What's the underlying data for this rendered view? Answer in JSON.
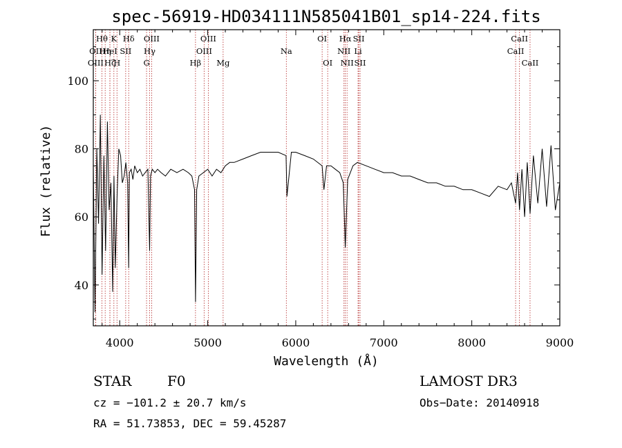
{
  "chart_data": {
    "type": "line",
    "title": "spec-56919-HD034111N585041B01_sp14-224.fits",
    "xlabel": "Wavelength (Å)",
    "ylabel": "Flux (relative)",
    "xlim": [
      3700,
      9000
    ],
    "ylim": [
      28,
      115
    ],
    "x_ticks": [
      4000,
      5000,
      6000,
      7000,
      8000,
      9000
    ],
    "y_ticks": [
      40,
      60,
      80,
      100
    ],
    "grid": false,
    "series": [
      {
        "x": [
          3700,
          3720,
          3740,
          3760,
          3780,
          3800,
          3820,
          3840,
          3860,
          3880,
          3900,
          3920,
          3935,
          3950,
          3970,
          3990,
          4010,
          4030,
          4050,
          4070,
          4090,
          4102,
          4110,
          4130,
          4150,
          4170,
          4200,
          4230,
          4260,
          4290,
          4320,
          4340,
          4350,
          4370,
          4400,
          4430,
          4470,
          4520,
          4580,
          4650,
          4720,
          4780,
          4820,
          4850,
          4861,
          4875,
          4900,
          4950,
          5000,
          5050,
          5100,
          5150,
          5200,
          5250,
          5300,
          5400,
          5500,
          5600,
          5700,
          5800,
          5890,
          5900,
          5950,
          6000,
          6100,
          6200,
          6300,
          6320,
          6350,
          6400,
          6450,
          6500,
          6540,
          6563,
          6590,
          6650,
          6700,
          6800,
          6900,
          7000,
          7100,
          7200,
          7300,
          7400,
          7500,
          7600,
          7700,
          7800,
          7900,
          8000,
          8100,
          8200,
          8300,
          8400,
          8450,
          8498,
          8520,
          8542,
          8570,
          8600,
          8630,
          8662,
          8700,
          8750,
          8800,
          8850,
          8900,
          8950,
          9000
        ],
        "y": [
          75,
          32,
          80,
          58,
          90,
          43,
          78,
          50,
          88,
          62,
          70,
          38,
          72,
          45,
          66,
          80,
          78,
          70,
          72,
          76,
          70,
          45,
          73,
          74,
          71,
          75,
          73,
          74,
          72,
          73,
          74,
          50,
          72,
          74,
          73,
          74,
          73,
          72,
          74,
          73,
          74,
          73,
          72,
          68,
          35,
          68,
          72,
          73,
          74,
          72,
          74,
          73,
          75,
          76,
          76,
          77,
          78,
          79,
          79,
          79,
          78,
          66,
          79,
          79,
          78,
          77,
          75,
          68,
          75,
          75,
          74,
          73,
          70,
          51,
          71,
          75,
          76,
          75,
          74,
          73,
          73,
          72,
          72,
          71,
          70,
          70,
          69,
          69,
          68,
          68,
          67,
          66,
          69,
          68,
          70,
          64,
          73,
          62,
          74,
          60,
          76,
          61,
          78,
          64,
          80,
          63,
          81,
          62,
          70
        ]
      }
    ],
    "spectral_lines": [
      {
        "label": "Hθ",
        "x": 3798,
        "row": 0
      },
      {
        "label": "OII",
        "x": 3727,
        "row": 1
      },
      {
        "label": "OIII",
        "x": 3727,
        "row": 2
      },
      {
        "label": "Hη",
        "x": 3835,
        "row": 1
      },
      {
        "label": "Hζ",
        "x": 3889,
        "row": 2
      },
      {
        "label": "HeI",
        "x": 3889,
        "row": 1
      },
      {
        "label": "K",
        "x": 3934,
        "row": 0
      },
      {
        "label": "SII",
        "x": 4068,
        "row": 1
      },
      {
        "label": "H",
        "x": 3969,
        "row": 2
      },
      {
        "label": "Hδ",
        "x": 4102,
        "row": 0
      },
      {
        "label": "OIII",
        "x": 4363,
        "row": 0
      },
      {
        "label": "Hγ",
        "x": 4340,
        "row": 1
      },
      {
        "label": "G",
        "x": 4305,
        "row": 2
      },
      {
        "label": "Hβ",
        "x": 4861,
        "row": 2
      },
      {
        "label": "OIII",
        "x": 5007,
        "row": 0
      },
      {
        "label": "OIII",
        "x": 4959,
        "row": 1
      },
      {
        "label": "Mg",
        "x": 5175,
        "row": 2
      },
      {
        "label": "Na",
        "x": 5893,
        "row": 1
      },
      {
        "label": "OI",
        "x": 6300,
        "row": 0
      },
      {
        "label": "OI",
        "x": 6363,
        "row": 2
      },
      {
        "label": "Hα",
        "x": 6563,
        "row": 0
      },
      {
        "label": "SII",
        "x": 6716,
        "row": 0
      },
      {
        "label": "NII",
        "x": 6548,
        "row": 1
      },
      {
        "label": "Li",
        "x": 6708,
        "row": 1
      },
      {
        "label": "NII",
        "x": 6583,
        "row": 2
      },
      {
        "label": "SII",
        "x": 6731,
        "row": 2
      },
      {
        "label": "CaII",
        "x": 8542,
        "row": 0
      },
      {
        "label": "CaII",
        "x": 8498,
        "row": 1
      },
      {
        "label": "CaII",
        "x": 8662,
        "row": 2
      }
    ]
  },
  "info": {
    "class": "STAR",
    "subclass": "F0",
    "survey": "LAMOST DR3",
    "cz": "cz = −101.2 ± 20.7 km/s",
    "obs_date": "Obs−Date: 20140918",
    "coords": "RA =  51.73853, DEC =  59.45287"
  }
}
